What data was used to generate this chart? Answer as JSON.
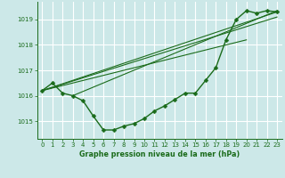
{
  "background_color": "#cce8e8",
  "grid_color": "#ffffff",
  "line_color": "#1a6b1a",
  "title": "Graphe pression niveau de la mer (hPa)",
  "xlim": [
    -0.5,
    23.5
  ],
  "ylim": [
    1014.3,
    1019.7
  ],
  "yticks": [
    1015,
    1016,
    1017,
    1018,
    1019
  ],
  "xticks": [
    0,
    1,
    2,
    3,
    4,
    5,
    6,
    7,
    8,
    9,
    10,
    11,
    12,
    13,
    14,
    15,
    16,
    17,
    18,
    19,
    20,
    21,
    22,
    23
  ],
  "main_x": [
    0,
    1,
    2,
    3,
    4,
    5,
    6,
    7,
    8,
    9,
    10,
    11,
    12,
    13,
    14,
    15,
    16,
    17,
    18,
    19,
    20,
    21,
    22,
    23
  ],
  "main_y": [
    1016.2,
    1016.5,
    1016.1,
    1016.0,
    1015.8,
    1015.2,
    1014.65,
    1014.65,
    1014.8,
    1014.9,
    1015.1,
    1015.4,
    1015.6,
    1015.85,
    1016.1,
    1016.1,
    1016.6,
    1017.1,
    1018.2,
    1019.0,
    1019.35,
    1019.25,
    1019.35,
    1019.3
  ],
  "trend_lines": [
    {
      "x": [
        0,
        23
      ],
      "y": [
        1016.2,
        1019.3
      ]
    },
    {
      "x": [
        0,
        23
      ],
      "y": [
        1016.2,
        1019.1
      ]
    },
    {
      "x": [
        0,
        20
      ],
      "y": [
        1016.2,
        1018.2
      ]
    },
    {
      "x": [
        3,
        23
      ],
      "y": [
        1016.0,
        1019.35
      ]
    }
  ]
}
